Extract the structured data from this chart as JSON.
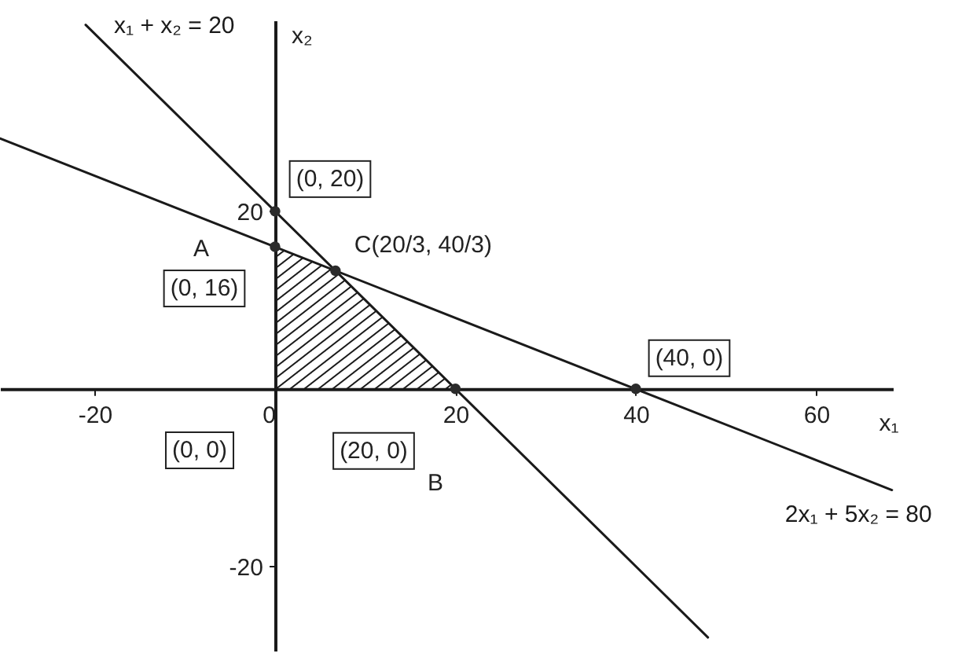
{
  "chart_data": {
    "type": "line",
    "xlabel": "x₁",
    "ylabel": "x₂",
    "xlim": [
      -30.5,
      68.5
    ],
    "ylim": [
      -29.5,
      41.5
    ],
    "xticks": [
      -20,
      0,
      20,
      40,
      60
    ],
    "yticks": [
      -20,
      20
    ],
    "series": [
      {
        "name": "x₁ + x₂ = 20",
        "type": "line",
        "color": "#1a1a1a",
        "x": [
          -21,
          48
        ],
        "values": [
          41,
          -28
        ]
      },
      {
        "name": "2x₁ + 5x₂ = 80",
        "type": "line",
        "color": "#1a1a1a",
        "x": [
          -30.5,
          68.4
        ],
        "values": [
          28.2,
          -11.4
        ]
      },
      {
        "type": "area",
        "color": "#1a1a1a",
        "x": [
          0,
          6.7,
          20
        ],
        "values": [
          16,
          13.3,
          0
        ]
      },
      {
        "type": "scatter",
        "color": "#2b2b2b",
        "marker": "circle",
        "x": [
          0,
          0,
          6.7,
          20,
          40
        ],
        "values": [
          20,
          16,
          13.3,
          0,
          0
        ]
      }
    ],
    "annotations": [
      {
        "text": "(0, 20)",
        "x": 0,
        "y": 20
      },
      {
        "text": "A",
        "x": 0,
        "y": 16
      },
      {
        "text": "(0, 16)",
        "x": 0,
        "y": 16
      },
      {
        "text": "C(20/3, 40/3)",
        "x": 6.7,
        "y": 13.3
      },
      "(0, 0)",
      {
        "text": "(20, 0)",
        "x": 20,
        "y": 0
      },
      "B",
      {
        "text": "(40, 0)",
        "x": 40,
        "y": 0
      }
    ]
  }
}
